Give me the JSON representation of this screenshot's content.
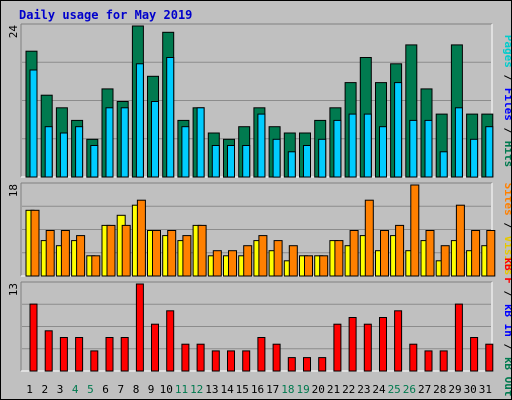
{
  "title": "Daily usage for May 2019",
  "chart_data": [
    {
      "type": "bar",
      "panel": "top",
      "ymax_label": "24",
      "ylim": [
        0,
        24
      ],
      "categories": [
        "1",
        "2",
        "3",
        "4",
        "5",
        "6",
        "7",
        "8",
        "9",
        "10",
        "11",
        "12",
        "13",
        "14",
        "15",
        "16",
        "17",
        "18",
        "19",
        "20",
        "21",
        "22",
        "23",
        "24",
        "25",
        "26",
        "27",
        "28",
        "29",
        "30",
        "31"
      ],
      "series": [
        {
          "name": "Hits",
          "color": "#007a4f",
          "values": [
            20,
            13,
            11,
            9,
            6,
            14,
            12,
            24,
            16,
            23,
            9,
            11,
            7,
            6,
            8,
            11,
            8,
            7,
            7,
            9,
            11,
            15,
            19,
            15,
            18,
            21,
            14,
            10,
            21,
            10,
            10
          ]
        },
        {
          "name": "Files",
          "color": "#0000ff",
          "values": [
            0,
            0,
            0,
            0,
            0,
            0,
            0,
            0,
            0,
            0,
            0,
            0,
            0,
            0,
            0,
            0,
            0,
            0,
            0,
            0,
            0,
            0,
            0,
            0,
            0,
            0,
            0,
            0,
            0,
            0,
            0
          ]
        },
        {
          "name": "Pages",
          "color": "#00ccff",
          "values": [
            17,
            8,
            7,
            8,
            5,
            11,
            11,
            18,
            12,
            19,
            8,
            11,
            5,
            5,
            5,
            10,
            6,
            4,
            5,
            6,
            9,
            10,
            10,
            8,
            15,
            9,
            9,
            4,
            11,
            6,
            8
          ]
        }
      ]
    },
    {
      "type": "bar",
      "panel": "middle",
      "ymax_label": "18",
      "ylim": [
        0,
        18
      ],
      "categories": [
        "1",
        "2",
        "3",
        "4",
        "5",
        "6",
        "7",
        "8",
        "9",
        "10",
        "11",
        "12",
        "13",
        "14",
        "15",
        "16",
        "17",
        "18",
        "19",
        "20",
        "21",
        "22",
        "23",
        "24",
        "25",
        "26",
        "27",
        "28",
        "29",
        "30",
        "31"
      ],
      "series": [
        {
          "name": "Visits",
          "color": "#ffff00",
          "values": [
            13,
            7,
            6,
            7,
            4,
            10,
            12,
            14,
            9,
            8,
            7,
            10,
            4,
            4,
            4,
            7,
            5,
            3,
            4,
            4,
            7,
            6,
            8,
            5,
            8,
            5,
            7,
            3,
            7,
            5,
            6
          ]
        },
        {
          "name": "Sites",
          "color": "#ff8000",
          "values": [
            13,
            9,
            9,
            8,
            4,
            10,
            10,
            15,
            9,
            9,
            8,
            10,
            5,
            5,
            6,
            8,
            7,
            6,
            4,
            4,
            7,
            9,
            15,
            9,
            10,
            18,
            9,
            6,
            14,
            9,
            9
          ]
        }
      ]
    },
    {
      "type": "bar",
      "panel": "bottom",
      "ymax_label": "13",
      "ylim": [
        0,
        13
      ],
      "categories": [
        "1",
        "2",
        "3",
        "4",
        "5",
        "6",
        "7",
        "8",
        "9",
        "10",
        "11",
        "12",
        "13",
        "14",
        "15",
        "16",
        "17",
        "18",
        "19",
        "20",
        "21",
        "22",
        "23",
        "24",
        "25",
        "26",
        "27",
        "28",
        "29",
        "30",
        "31"
      ],
      "series": [
        {
          "name": "kB In",
          "color": "#0000ff",
          "values": [
            0,
            0,
            0,
            0,
            0,
            0,
            0,
            0,
            0,
            0,
            0,
            0,
            0,
            0,
            0,
            0,
            0,
            0,
            0,
            0,
            0,
            0,
            0,
            0,
            0,
            0,
            0,
            0,
            0,
            0,
            0
          ]
        },
        {
          "name": "kB Out",
          "color": "#007a4f",
          "values": [
            0,
            0,
            0,
            0,
            0,
            0,
            0,
            0,
            0,
            0,
            0,
            0,
            0,
            0,
            0,
            0,
            0,
            0,
            0,
            0,
            0,
            0,
            0,
            0,
            0,
            0,
            0,
            0,
            0,
            0,
            0
          ]
        },
        {
          "name": "kB F",
          "color": "#ff0000",
          "values": [
            10,
            6,
            5,
            5,
            3,
            5,
            5,
            13,
            7,
            9,
            4,
            4,
            3,
            3,
            3,
            5,
            4,
            2,
            2,
            2,
            7,
            8,
            7,
            8,
            9,
            4,
            3,
            3,
            10,
            5,
            4
          ]
        }
      ]
    }
  ],
  "legend_top": [
    {
      "text": "Pages",
      "color": "#00cccc"
    },
    {
      "text": " / ",
      "color": "#000000"
    },
    {
      "text": "Files",
      "color": "#0000ff"
    },
    {
      "text": " / ",
      "color": "#000000"
    },
    {
      "text": "Hits",
      "color": "#007a4f"
    }
  ],
  "legend_middle": [
    {
      "text": "Sites",
      "color": "#ff8000"
    },
    {
      "text": " / ",
      "color": "#000000"
    },
    {
      "text": "Visits",
      "color": "#e6c800"
    }
  ],
  "legend_bottom": [
    {
      "text": "kB F",
      "color": "#ff0000"
    },
    {
      "text": " / ",
      "color": "#000000"
    },
    {
      "text": "kB In",
      "color": "#0000ff"
    },
    {
      "text": " / ",
      "color": "#000000"
    },
    {
      "text": "kB Out",
      "color": "#007a4f"
    }
  ],
  "weekend_days": [
    "4",
    "5",
    "11",
    "12",
    "18",
    "19",
    "25",
    "26"
  ],
  "weekday_color": "#000000",
  "weekend_color": "#007a4f"
}
